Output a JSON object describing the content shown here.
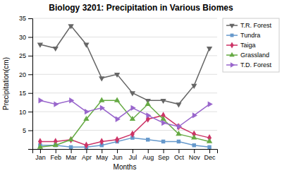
{
  "chart_data": {
    "type": "line",
    "title": "Biology 3201: Precipitation in Various Biomes",
    "xlabel": "Months",
    "ylabel": "Precipitation(cm)",
    "categories": [
      "Jan",
      "Feb",
      "Mar",
      "Apr",
      "May",
      "Jun",
      "Jul",
      "Aug",
      "Sep",
      "Oct",
      "Nov",
      "Dec"
    ],
    "series": [
      {
        "name": "T.R. Forest",
        "color": "#666666",
        "marker": "triangle-down",
        "values": [
          28,
          27,
          33,
          28,
          19,
          20,
          15,
          13,
          13,
          12,
          17,
          27
        ]
      },
      {
        "name": "Tundra",
        "color": "#6699CC",
        "marker": "square",
        "values": [
          1,
          1,
          0.5,
          0.5,
          1,
          2,
          3,
          2.5,
          2,
          2,
          1,
          0.5
        ]
      },
      {
        "name": "Taiga",
        "color": "#CC3366",
        "marker": "diamond",
        "values": [
          2,
          2,
          2.5,
          1,
          2,
          2.5,
          4,
          8,
          9,
          6,
          4,
          3
        ]
      },
      {
        "name": "Grassland",
        "color": "#66AA44",
        "marker": "triangle-up",
        "values": [
          0.5,
          1,
          2.5,
          8,
          13,
          13,
          8,
          12,
          8,
          4,
          3,
          2
        ]
      },
      {
        "name": "T.D. Forest",
        "color": "#9966CC",
        "marker": "triangle-right",
        "values": [
          13,
          12,
          13,
          10,
          11,
          8,
          11,
          9,
          7,
          6,
          9,
          12
        ]
      }
    ],
    "ylim": [
      0,
      35
    ],
    "yticks": [
      5,
      10,
      15,
      20,
      25,
      30,
      35
    ],
    "grid": true,
    "legend": "upper right"
  }
}
